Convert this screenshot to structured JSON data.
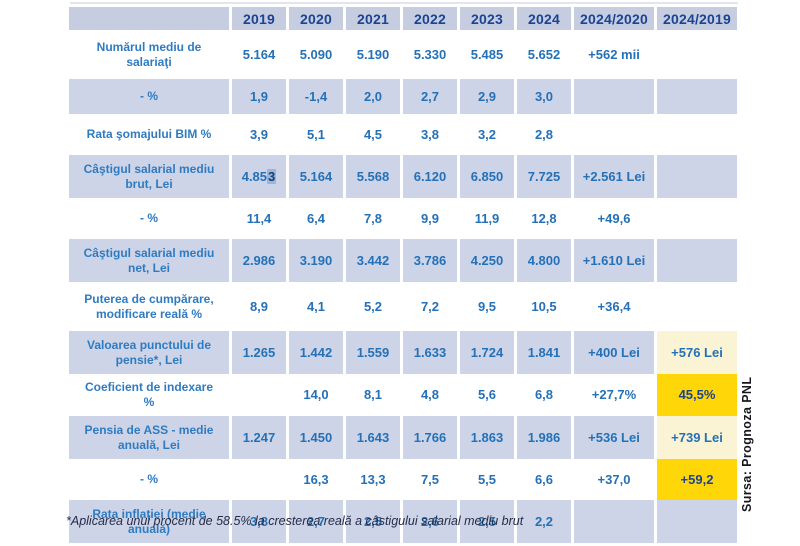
{
  "chart_data": {
    "type": "table",
    "columns": [
      "",
      "2019",
      "2020",
      "2021",
      "2022",
      "2023",
      "2024",
      "2024/2020",
      "2024/2019"
    ],
    "rows": [
      {
        "label": "Numărul mediu de salariaţi",
        "shade": "white",
        "last_cell_style": "",
        "cells": [
          "5.164",
          "5.090",
          "5.190",
          "5.330",
          "5.485",
          "5.652",
          "+562 mii",
          ""
        ]
      },
      {
        "label": "- %",
        "shade": "blue",
        "last_cell_style": "",
        "cells": [
          "1,9",
          "-1,4",
          "2,0",
          "2,7",
          "2,9",
          "3,0",
          "",
          ""
        ]
      },
      {
        "label": "Rata şomajului BIM %",
        "shade": "white",
        "last_cell_style": "",
        "cells": [
          "3,9",
          "5,1",
          "4,5",
          "3,8",
          "3,2",
          "2,8",
          "",
          ""
        ]
      },
      {
        "label": "Câştigul salarial mediu brut, Lei",
        "shade": "blue",
        "last_cell_style": "",
        "cells": [
          {
            "text": "4.85",
            "selected": "3"
          },
          "5.164",
          "5.568",
          "6.120",
          "6.850",
          "7.725",
          "+2.561 Lei",
          ""
        ]
      },
      {
        "label": "- %",
        "shade": "white",
        "last_cell_style": "",
        "cells": [
          "11,4",
          "6,4",
          "7,8",
          "9,9",
          "11,9",
          "12,8",
          "+49,6",
          ""
        ]
      },
      {
        "label": "Câştigul salarial mediu net, Lei",
        "shade": "blue",
        "last_cell_style": "",
        "cells": [
          "2.986",
          "3.190",
          "3.442",
          "3.786",
          "4.250",
          "4.800",
          "+1.610 Lei",
          ""
        ]
      },
      {
        "label": "Puterea de cumpărare, modificare reală %",
        "shade": "white",
        "last_cell_style": "",
        "cells": [
          "8,9",
          "4,1",
          "5,2",
          "7,2",
          "9,5",
          "10,5",
          "+36,4",
          ""
        ]
      },
      {
        "label": "Valoarea punctului de pensie*, Lei",
        "shade": "blue",
        "last_cell_style": "pale",
        "cells": [
          "1.265",
          "1.442",
          "1.559",
          "1.633",
          "1.724",
          "1.841",
          "+400 Lei",
          "+576 Lei"
        ]
      },
      {
        "label": "Coeficient de indexare %",
        "shade": "white",
        "last_cell_style": "gold",
        "cells": [
          "",
          "14,0",
          "8,1",
          "4,8",
          "5,6",
          "6,8",
          "+27,7%",
          "45,5%"
        ]
      },
      {
        "label": "Pensia de ASS - medie anuală, Lei",
        "shade": "blue",
        "last_cell_style": "pale",
        "cells": [
          "1.247",
          "1.450",
          "1.643",
          "1.766",
          "1.863",
          "1.986",
          "+536 Lei",
          "+739 Lei"
        ]
      },
      {
        "label": "- %",
        "shade": "white",
        "last_cell_style": "gold",
        "cells": [
          "",
          "16,3",
          "13,3",
          "7,5",
          "5,5",
          "6,6",
          "+37,0",
          "+59,2"
        ]
      },
      {
        "label": "Rata inflaţiei (medie anuală)",
        "shade": "blue",
        "last_cell_style": "",
        "cells": [
          "3,8",
          "2,7",
          "2,5",
          "2,6",
          "2,5",
          "2,2",
          "",
          ""
        ]
      }
    ]
  },
  "footnote": "*Aplicarea unui procent de 58.5% la cresterea reală a câstigului salarial mediu brut",
  "source_label": "Sursa: Prognoza PNL",
  "colors": {
    "header_bg": "#c7cde0",
    "row_blue_bg": "#cdd4e8",
    "row_white_bg": "#ffffff",
    "header_text": "#1b4392",
    "value_text": "#2471b8",
    "label_text": "#2f7bc1",
    "gold_bg": "#ffd608",
    "pale_yellow_bg": "#faf3d4",
    "gold_text": "#1b4392",
    "selection_bg": "#9db5d8",
    "footnote_text": "#252c48",
    "source_text": "#16161e"
  }
}
